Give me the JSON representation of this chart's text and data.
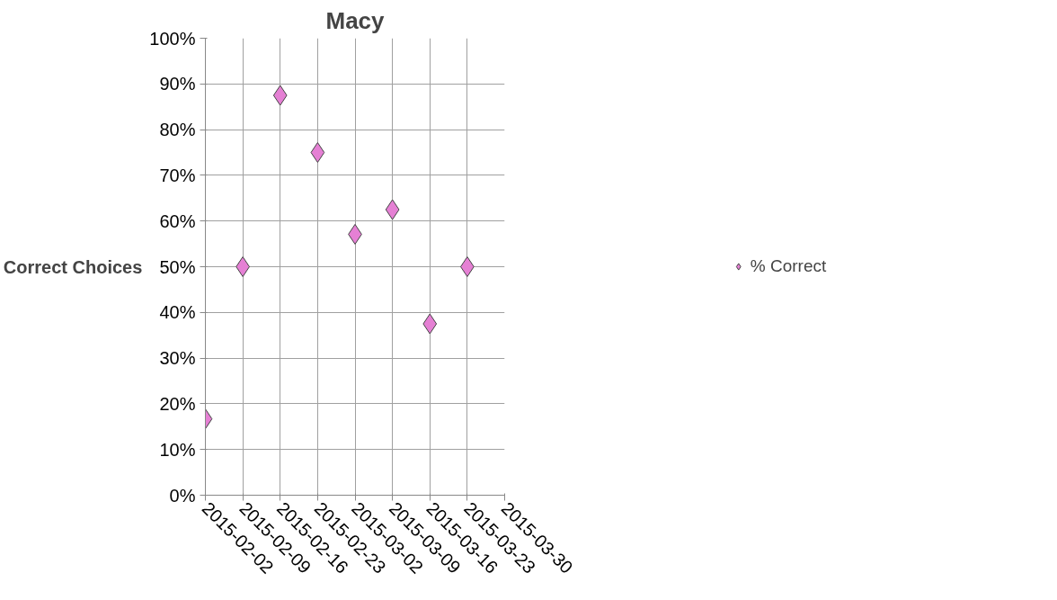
{
  "chart_data": {
    "type": "scatter",
    "title": "Macy",
    "ylabel": "Correct Choices",
    "x": [
      "2015-02-02",
      "2015-02-09",
      "2015-02-16",
      "2015-02-23",
      "2015-03-02",
      "2015-03-09",
      "2015-03-16",
      "2015-03-23"
    ],
    "series": [
      {
        "name": "% Correct",
        "color": "#e580d4",
        "values": [
          16.7,
          50,
          87.5,
          75,
          57.1,
          62.5,
          37.5,
          50
        ]
      }
    ],
    "xlim": [
      "2015-02-02",
      "2015-03-30"
    ],
    "xticks": [
      "2015-02-02",
      "2015-02-09",
      "2015-02-16",
      "2015-02-23",
      "2015-03-02",
      "2015-03-09",
      "2015-03-16",
      "2015-03-23",
      "2015-03-30"
    ],
    "ylim": [
      0,
      100
    ],
    "yticks": [
      {
        "value": 0,
        "label": "0%"
      },
      {
        "value": 10,
        "label": "10%"
      },
      {
        "value": 20,
        "label": "20%"
      },
      {
        "value": 30,
        "label": "30%"
      },
      {
        "value": 40,
        "label": "40%"
      },
      {
        "value": 50,
        "label": "50%"
      },
      {
        "value": 60,
        "label": "60%"
      },
      {
        "value": 70,
        "label": "70%"
      },
      {
        "value": 80,
        "label": "80%"
      },
      {
        "value": 90,
        "label": "90%"
      },
      {
        "value": 100,
        "label": "100%"
      }
    ],
    "grid": true,
    "legend": "right",
    "marker": "diamond"
  }
}
